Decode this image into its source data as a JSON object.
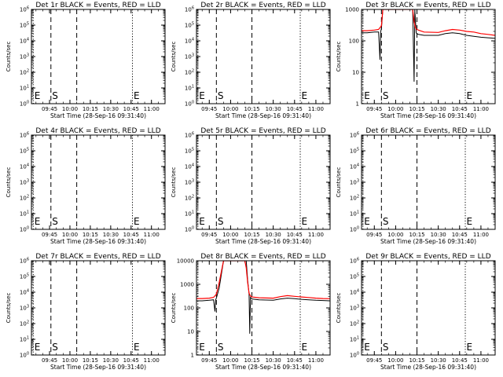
{
  "chart_data": [
    {
      "type": "line",
      "title": "Det 1r BLACK = Events, RED = LLD",
      "xlabel": "Start Time (28-Sep-16 09:31:40)",
      "ylabel": "Counts/sec",
      "xticks": [
        "09:45",
        "10:00",
        "10:15",
        "10:30",
        "10:45",
        "11:00"
      ],
      "xlim": [
        "09:31:40",
        "11:10"
      ],
      "yscale": "log",
      "ylim": [
        1,
        1000000.0
      ],
      "yticks": [
        "10^0",
        "10^1",
        "10^2",
        "10^3",
        "10^4",
        "10^5",
        "10^6"
      ],
      "markers": [
        {
          "label": "E",
          "time": "09:33",
          "style": "dotted"
        },
        {
          "label": "S",
          "time": "09:46",
          "style": "dashed"
        },
        {
          "label": "",
          "time": "10:05",
          "style": "dashed"
        },
        {
          "label": "E",
          "time": "10:46",
          "style": "dotted"
        }
      ],
      "series": []
    },
    {
      "type": "line",
      "title": "Det 2r BLACK = Events, RED = LLD",
      "xlabel": "Start Time (28-Sep-16 09:31:40)",
      "ylabel": "Counts/sec",
      "xticks": [
        "09:45",
        "10:00",
        "10:15",
        "10:30",
        "10:45",
        "11:00"
      ],
      "xlim": [
        "09:36",
        "11:10"
      ],
      "yscale": "log",
      "ylim": [
        1,
        1000000.0
      ],
      "yticks": [
        "10^0",
        "10^1",
        "10^2",
        "10^3",
        "10^4",
        "10^5",
        "10^6"
      ],
      "markers": [
        {
          "label": "E",
          "time": "09:37",
          "style": "dotted"
        },
        {
          "label": "S",
          "time": "09:50",
          "style": "dashed"
        },
        {
          "label": "",
          "time": "10:15",
          "style": "dashed"
        },
        {
          "label": "E",
          "time": "10:49",
          "style": "dotted"
        }
      ],
      "series": []
    },
    {
      "type": "line",
      "title": "Det 3r BLACK = Events, RED = LLD",
      "xlabel": "Start Time (28-Sep-16 09:31:40)",
      "ylabel": "Counts/sec",
      "xticks": [
        "09:45",
        "10:00",
        "10:15",
        "10:30",
        "10:45",
        "11:00"
      ],
      "xlim": [
        "09:36",
        "11:10"
      ],
      "yscale": "log",
      "ylim": [
        1,
        1000
      ],
      "yticks": [
        "1",
        "10",
        "100",
        "1000"
      ],
      "markers": [
        {
          "label": "E",
          "time": "09:37",
          "style": "dotted"
        },
        {
          "label": "S",
          "time": "09:50",
          "style": "dashed"
        },
        {
          "label": "",
          "time": "10:15",
          "style": "dashed"
        },
        {
          "label": "E",
          "time": "10:49",
          "style": "dotted"
        }
      ],
      "series": [
        {
          "color": "#000000",
          "x": [
            "09:36",
            "09:40",
            "09:45",
            "09:48",
            "09:49",
            "09:49:30",
            "09:50",
            "09:51",
            "09:53",
            "09:55",
            "09:56",
            "09:57",
            "10:10",
            "10:11",
            "10:12",
            "10:13",
            "10:13:30",
            "10:14",
            "10:14:30",
            "10:15",
            "10:16",
            "10:20",
            "10:30",
            "10:35",
            "10:40",
            "10:45",
            "10:50",
            "10:55",
            "11:00",
            "11:05",
            "11:10"
          ],
          "y": [
            180,
            180,
            190,
            190,
            25,
            200,
            240,
            1000,
            1000,
            1000,
            1000,
            1000,
            1000,
            1000,
            1000,
            5,
            1000,
            400,
            180,
            170,
            160,
            150,
            150,
            170,
            180,
            170,
            150,
            140,
            130,
            125,
            120
          ]
        },
        {
          "color": "#ff0000",
          "x": [
            "09:36",
            "09:40",
            "09:45",
            "09:48",
            "09:50",
            "09:51",
            "09:53",
            "10:11",
            "10:12",
            "10:13",
            "10:14",
            "10:15",
            "10:16",
            "10:20",
            "10:30",
            "10:35",
            "10:40",
            "10:45",
            "10:50",
            "10:55",
            "11:00",
            "11:05",
            "11:10"
          ],
          "y": [
            210,
            210,
            220,
            230,
            300,
            1000,
            1000,
            1000,
            1000,
            400,
            260,
            230,
            220,
            190,
            185,
            210,
            230,
            220,
            200,
            190,
            170,
            160,
            150
          ]
        }
      ]
    },
    {
      "type": "line",
      "title": "Det 4r BLACK = Events, RED = LLD",
      "xlabel": "Start Time (28-Sep-16 09:31:40)",
      "ylabel": "Counts/sec",
      "xticks": [
        "09:45",
        "10:00",
        "10:15",
        "10:30",
        "10:45",
        "11:00"
      ],
      "xlim": [
        "09:31:40",
        "11:10"
      ],
      "yscale": "log",
      "ylim": [
        1,
        1000000.0
      ],
      "yticks": [
        "10^0",
        "10^1",
        "10^2",
        "10^3",
        "10^4",
        "10^5",
        "10^6"
      ],
      "markers": [
        {
          "label": "E",
          "time": "09:33",
          "style": "dotted"
        },
        {
          "label": "S",
          "time": "09:46",
          "style": "dashed"
        },
        {
          "label": "",
          "time": "10:05",
          "style": "dashed"
        },
        {
          "label": "E",
          "time": "10:46",
          "style": "dotted"
        }
      ],
      "series": []
    },
    {
      "type": "line",
      "title": "Det 5r BLACK = Events, RED = LLD",
      "xlabel": "Start Time (28-Sep-16 09:31:40)",
      "ylabel": "Counts/sec",
      "xticks": [
        "09:45",
        "10:00",
        "10:15",
        "10:30",
        "10:45",
        "11:00"
      ],
      "xlim": [
        "09:36",
        "11:10"
      ],
      "yscale": "log",
      "ylim": [
        1,
        1000000.0
      ],
      "yticks": [
        "10^0",
        "10^1",
        "10^2",
        "10^3",
        "10^4",
        "10^5",
        "10^6"
      ],
      "markers": [
        {
          "label": "E",
          "time": "09:37",
          "style": "dotted"
        },
        {
          "label": "S",
          "time": "09:50",
          "style": "dashed"
        },
        {
          "label": "",
          "time": "10:15",
          "style": "dashed"
        },
        {
          "label": "E",
          "time": "10:49",
          "style": "dotted"
        }
      ],
      "series": []
    },
    {
      "type": "line",
      "title": "Det 6r BLACK = Events, RED = LLD",
      "xlabel": "Start Time (28-Sep-16 09:31:40)",
      "ylabel": "Counts/sec",
      "xticks": [
        "09:45",
        "10:00",
        "10:15",
        "10:30",
        "10:45",
        "11:00"
      ],
      "xlim": [
        "09:36",
        "11:10"
      ],
      "yscale": "log",
      "ylim": [
        1,
        1000000.0
      ],
      "yticks": [
        "10^0",
        "10^1",
        "10^2",
        "10^3",
        "10^4",
        "10^5",
        "10^6"
      ],
      "markers": [
        {
          "label": "E",
          "time": "09:37",
          "style": "dotted"
        },
        {
          "label": "S",
          "time": "09:50",
          "style": "dashed"
        },
        {
          "label": "",
          "time": "10:15",
          "style": "dashed"
        },
        {
          "label": "E",
          "time": "10:49",
          "style": "dotted"
        }
      ],
      "series": []
    },
    {
      "type": "line",
      "title": "Det 7r BLACK = Events, RED = LLD",
      "xlabel": "Start Time (28-Sep-16 09:31:40)",
      "ylabel": "Counts/sec",
      "xticks": [
        "09:45",
        "10:00",
        "10:15",
        "10:30",
        "10:45",
        "11:00"
      ],
      "xlim": [
        "09:31:40",
        "11:10"
      ],
      "yscale": "log",
      "ylim": [
        1,
        1000000.0
      ],
      "yticks": [
        "10^0",
        "10^1",
        "10^2",
        "10^3",
        "10^4",
        "10^5",
        "10^6"
      ],
      "markers": [
        {
          "label": "E",
          "time": "09:33",
          "style": "dotted"
        },
        {
          "label": "S",
          "time": "09:46",
          "style": "dashed"
        },
        {
          "label": "",
          "time": "10:05",
          "style": "dashed"
        },
        {
          "label": "E",
          "time": "10:46",
          "style": "dotted"
        }
      ],
      "series": []
    },
    {
      "type": "line",
      "title": "Det 8r BLACK = Events, RED = LLD",
      "xlabel": "Start Time (28-Sep-16 09:31:40)",
      "ylabel": "Counts/sec",
      "xticks": [
        "09:45",
        "10:00",
        "10:15",
        "10:30",
        "10:45",
        "11:00"
      ],
      "xlim": [
        "09:36",
        "11:10"
      ],
      "yscale": "log",
      "ylim": [
        1,
        10000
      ],
      "yticks": [
        "1",
        "10",
        "100",
        "1000",
        "10000"
      ],
      "markers": [
        {
          "label": "E",
          "time": "09:37",
          "style": "dotted"
        },
        {
          "label": "S",
          "time": "09:50",
          "style": "dashed"
        },
        {
          "label": "",
          "time": "10:15",
          "style": "dashed"
        },
        {
          "label": "E",
          "time": "10:49",
          "style": "dotted"
        }
      ],
      "series": [
        {
          "color": "#000000",
          "x": [
            "09:36",
            "09:40",
            "09:45",
            "09:48",
            "09:49",
            "09:49:30",
            "09:50",
            "09:52",
            "09:55",
            "09:57",
            "10:10",
            "10:11",
            "10:12",
            "10:13",
            "10:13:30",
            "10:14",
            "10:15",
            "10:20",
            "10:30",
            "10:35",
            "10:40",
            "10:45",
            "10:50",
            "10:55",
            "11:00",
            "11:05",
            "11:10"
          ],
          "y": [
            200,
            200,
            210,
            220,
            70,
            220,
            260,
            700,
            10000,
            10000,
            10000,
            10000,
            1500,
            400,
            8,
            280,
            240,
            220,
            210,
            240,
            260,
            245,
            230,
            220,
            210,
            205,
            200
          ]
        },
        {
          "color": "#ff0000",
          "x": [
            "09:36",
            "09:40",
            "09:45",
            "09:48",
            "09:50",
            "09:52",
            "09:55",
            "10:10",
            "10:11",
            "10:12",
            "10:13",
            "10:14",
            "10:15",
            "10:20",
            "10:30",
            "10:35",
            "10:40",
            "10:45",
            "10:50",
            "10:55",
            "11:00",
            "11:05",
            "11:10"
          ],
          "y": [
            250,
            250,
            260,
            280,
            380,
            1200,
            10000,
            10000,
            5000,
            1200,
            420,
            320,
            290,
            270,
            260,
            300,
            330,
            310,
            290,
            275,
            260,
            250,
            245
          ]
        }
      ]
    },
    {
      "type": "line",
      "title": "Det 9r BLACK = Events, RED = LLD",
      "xlabel": "Start Time (28-Sep-16 09:31:40)",
      "ylabel": "Counts/sec",
      "xticks": [
        "09:45",
        "10:00",
        "10:15",
        "10:30",
        "10:45",
        "11:00"
      ],
      "xlim": [
        "09:36",
        "11:10"
      ],
      "yscale": "log",
      "ylim": [
        1,
        1000000.0
      ],
      "yticks": [
        "10^0",
        "10^1",
        "10^2",
        "10^3",
        "10^4",
        "10^5",
        "10^6"
      ],
      "markers": [
        {
          "label": "E",
          "time": "09:37",
          "style": "dotted"
        },
        {
          "label": "S",
          "time": "09:50",
          "style": "dashed"
        },
        {
          "label": "",
          "time": "10:15",
          "style": "dashed"
        },
        {
          "label": "E",
          "time": "10:49",
          "style": "dotted"
        }
      ],
      "series": []
    }
  ]
}
